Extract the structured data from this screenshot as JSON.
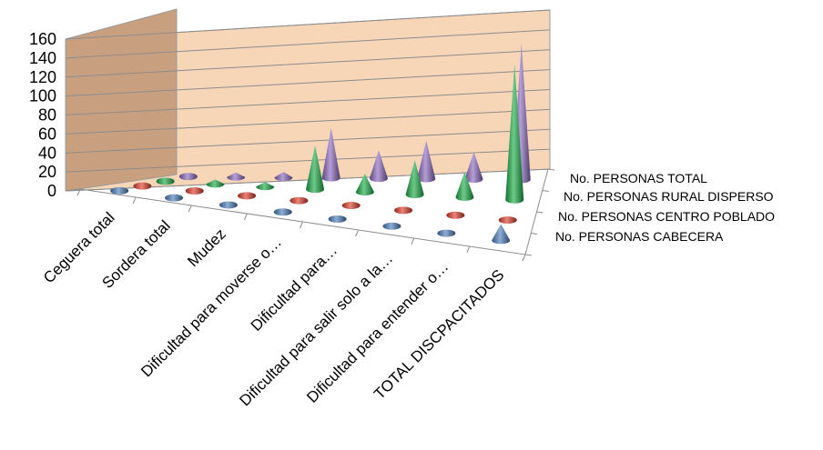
{
  "chart_data": {
    "type": "bar",
    "subtype": "3d-cone",
    "title": "",
    "xlabel": "",
    "ylabel": "",
    "ylim": [
      0,
      160
    ],
    "yticks": [
      0,
      20,
      40,
      60,
      80,
      100,
      120,
      140,
      160
    ],
    "grid": true,
    "categories": [
      "Ceguera total",
      "Sordera total",
      "Mudez",
      "Dificultad para moverse o…",
      "Dificultad para…",
      "Dificultad para salir solo a la…",
      "Dificultad para entender o…",
      "TOTAL DISCPACITADOS"
    ],
    "series": [
      {
        "name": "No. PERSONAS CABECERA",
        "color": "#4f81bd",
        "values": [
          1,
          3,
          3,
          4,
          3,
          3,
          2,
          18
        ]
      },
      {
        "name": "No. PERSONAS CENTRO POBLADO",
        "color": "#e0402f",
        "values": [
          0,
          4,
          0,
          0,
          2,
          0,
          0,
          2
        ]
      },
      {
        "name": "No. PERSONAS RURAL DISPERSO",
        "color": "#1fae4a",
        "values": [
          4,
          5,
          5,
          48,
          20,
          38,
          28,
          150
        ]
      },
      {
        "name": "No. PERSONAS TOTAL",
        "color": "#8e6bc1",
        "values": [
          4,
          5,
          6,
          55,
          31,
          42,
          30,
          150
        ]
      }
    ]
  }
}
